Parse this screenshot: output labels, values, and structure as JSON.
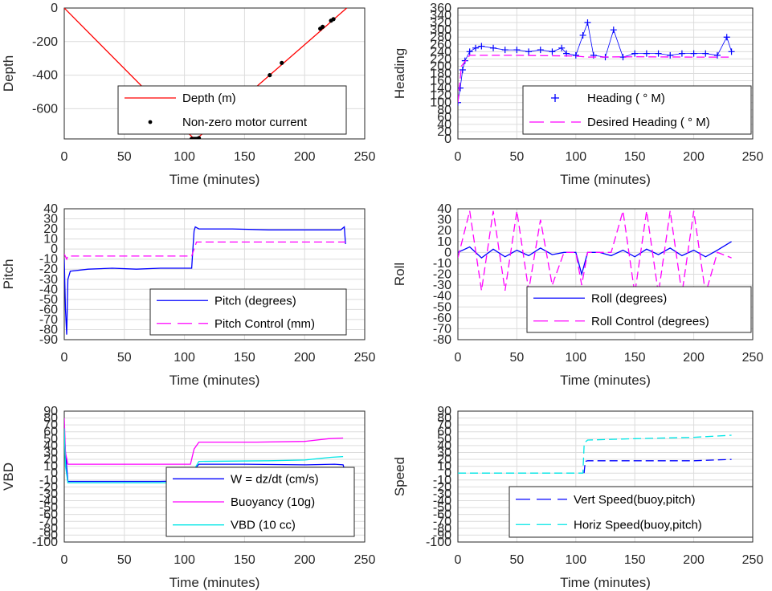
{
  "chart_data": [
    {
      "id": "depth",
      "type": "line",
      "xlabel": "Time (minutes)",
      "ylabel": "Depth",
      "xlim": [
        0,
        250
      ],
      "ylim": [
        -780,
        0
      ],
      "xticks": [
        "0",
        "50",
        "100",
        "150",
        "200",
        "250"
      ],
      "yticks": [
        "0",
        "-200",
        "-400",
        "-600"
      ],
      "legend": "bottom-right",
      "series": [
        {
          "name": "Depth (m)",
          "style": "line",
          "color": "#ff0000",
          "x": [
            0,
            108,
            110,
            235
          ],
          "y": [
            0,
            -780,
            -780,
            0
          ]
        },
        {
          "name": "Non-zero motor current",
          "style": "dots",
          "color": "#000000",
          "x": [
            106,
            107,
            108,
            109,
            110,
            111,
            112,
            171,
            181,
            213,
            215,
            222,
            224
          ],
          "y": [
            -780,
            -780,
            -780,
            -780,
            -780,
            -780,
            -775,
            -400,
            -327,
            -123,
            -112,
            -75,
            -66
          ]
        }
      ]
    },
    {
      "id": "heading",
      "type": "line",
      "xlabel": "Time (minutes)",
      "ylabel": "Heading",
      "xlim": [
        0,
        250
      ],
      "ylim": [
        0,
        360
      ],
      "xticks": [
        "0",
        "50",
        "100",
        "150",
        "200",
        "250"
      ],
      "yticks": [
        "0",
        "20",
        "40",
        "60",
        "80",
        "100",
        "120",
        "140",
        "160",
        "180",
        "200",
        "220",
        "240",
        "260",
        "280",
        "300",
        "320",
        "340",
        "360"
      ],
      "legend": "bottom-right",
      "series": [
        {
          "name": "Heading ( ° M)",
          "style": "plus",
          "color": "#0000ff",
          "x": [
            0,
            2,
            4,
            6,
            10,
            15,
            20,
            30,
            40,
            50,
            60,
            70,
            80,
            88,
            92,
            100,
            106,
            110,
            115,
            125,
            132,
            140,
            150,
            160,
            170,
            180,
            190,
            200,
            210,
            220,
            228,
            232
          ],
          "y": [
            100,
            140,
            190,
            215,
            240,
            250,
            255,
            250,
            245,
            245,
            240,
            245,
            240,
            250,
            235,
            230,
            285,
            320,
            230,
            225,
            300,
            225,
            235,
            235,
            235,
            230,
            235,
            235,
            235,
            230,
            280,
            240
          ]
        },
        {
          "name": "Desired Heading ( ° M)",
          "style": "dash",
          "color": "#ff00ff",
          "x": [
            0,
            3,
            10,
            50,
            100,
            110,
            150,
            200,
            233
          ],
          "y": [
            100,
            200,
            230,
            230,
            228,
            225,
            226,
            225,
            225
          ]
        }
      ]
    },
    {
      "id": "pitch",
      "type": "line",
      "xlabel": "Time (minutes)",
      "ylabel": "Pitch",
      "xlim": [
        0,
        250
      ],
      "ylim": [
        -90,
        40
      ],
      "xticks": [
        "0",
        "50",
        "100",
        "150",
        "200",
        "250"
      ],
      "yticks": [
        "-90",
        "-80",
        "-70",
        "-60",
        "-50",
        "-40",
        "-30",
        "-20",
        "-10",
        "0",
        "10",
        "20",
        "30",
        "40"
      ],
      "legend": "bottom-right",
      "series": [
        {
          "name": "Pitch (degrees)",
          "style": "line",
          "color": "#0000ff",
          "x": [
            0,
            1,
            2,
            3,
            5,
            20,
            40,
            60,
            80,
            100,
            106,
            107,
            108,
            109,
            112,
            140,
            170,
            200,
            230,
            233,
            234
          ],
          "y": [
            -10,
            -60,
            -85,
            -30,
            -22,
            -20,
            -19,
            -20,
            -19,
            -19,
            -19,
            0,
            18,
            22,
            20,
            20,
            19,
            19,
            19,
            22,
            5
          ]
        },
        {
          "name": "Pitch Control (mm)",
          "style": "dash",
          "color": "#ff00ff",
          "x": [
            0,
            2,
            3,
            50,
            106,
            108,
            110,
            150,
            200,
            234
          ],
          "y": [
            -5,
            -10,
            -7,
            -7,
            -7,
            0,
            7,
            7,
            7,
            7
          ]
        }
      ]
    },
    {
      "id": "roll",
      "type": "line",
      "xlabel": "Time (minutes)",
      "ylabel": "Roll",
      "xlim": [
        0,
        250
      ],
      "ylim": [
        -80,
        40
      ],
      "xticks": [
        "0",
        "50",
        "100",
        "150",
        "200",
        "250"
      ],
      "yticks": [
        "-80",
        "-70",
        "-60",
        "-50",
        "-40",
        "-30",
        "-20",
        "-10",
        "0",
        "10",
        "20",
        "30",
        "40"
      ],
      "legend": "bottom-right",
      "series": [
        {
          "name": "Roll (degrees)",
          "style": "line",
          "color": "#0000ff",
          "x": [
            0,
            10,
            20,
            30,
            40,
            50,
            60,
            70,
            80,
            90,
            100,
            105,
            110,
            120,
            130,
            140,
            150,
            160,
            170,
            180,
            190,
            200,
            210,
            220,
            232
          ],
          "y": [
            0,
            5,
            -5,
            3,
            -4,
            2,
            -3,
            4,
            -2,
            0,
            0,
            -20,
            0,
            0,
            -3,
            2,
            -4,
            3,
            -2,
            4,
            -3,
            2,
            -4,
            2,
            10
          ]
        },
        {
          "name": "Roll Control (degrees)",
          "style": "dash",
          "color": "#ff00ff",
          "x": [
            0,
            10,
            20,
            30,
            40,
            50,
            60,
            70,
            80,
            90,
            100,
            105,
            110,
            120,
            130,
            140,
            150,
            160,
            170,
            180,
            190,
            200,
            210,
            220,
            232
          ],
          "y": [
            -5,
            38,
            -35,
            38,
            -35,
            38,
            -35,
            30,
            -30,
            0,
            0,
            -30,
            0,
            0,
            0,
            38,
            -38,
            38,
            -38,
            38,
            -38,
            38,
            -38,
            0,
            -5
          ]
        }
      ]
    },
    {
      "id": "vbd",
      "type": "line",
      "xlabel": "Time (minutes)",
      "ylabel": "VBD",
      "xlim": [
        0,
        250
      ],
      "ylim": [
        -100,
        90
      ],
      "xticks": [
        "0",
        "50",
        "100",
        "150",
        "200",
        "250"
      ],
      "yticks": [
        "-100",
        "-90",
        "-80",
        "-70",
        "-60",
        "-50",
        "-40",
        "-30",
        "-20",
        "-10",
        "0",
        "10",
        "20",
        "30",
        "40",
        "50",
        "60",
        "70",
        "80",
        "90"
      ],
      "legend": "bottom-right",
      "series": [
        {
          "name": "W = dz/dt (cm/s)",
          "style": "line",
          "color": "#0000ff",
          "x": [
            0,
            1,
            3,
            20,
            50,
            80,
            106,
            108,
            112,
            150,
            200,
            225,
            232,
            234
          ],
          "y": [
            60,
            30,
            -12,
            -12,
            -12,
            -12,
            -11,
            5,
            13,
            13,
            12,
            13,
            12,
            0
          ]
        },
        {
          "name": "Buoyancy (10g)",
          "style": "line",
          "color": "#ff00ff",
          "x": [
            0,
            1,
            3,
            50,
            105,
            108,
            112,
            160,
            200,
            220,
            232
          ],
          "y": [
            80,
            30,
            13,
            13,
            13,
            35,
            45,
            45,
            46,
            50,
            51
          ]
        },
        {
          "name": "VBD (10 cc)",
          "style": "line",
          "color": "#00e6e6",
          "x": [
            0,
            1,
            3,
            50,
            105,
            108,
            112,
            170,
            200,
            222,
            232
          ],
          "y": [
            65,
            10,
            -14,
            -14,
            -14,
            5,
            17,
            18,
            19,
            23,
            24
          ]
        }
      ]
    },
    {
      "id": "speed",
      "type": "line",
      "xlabel": "Time (minutes)",
      "ylabel": "Speed",
      "xlim": [
        0,
        250
      ],
      "ylim": [
        -100,
        90
      ],
      "xticks": [
        "0",
        "50",
        "100",
        "150",
        "200",
        "250"
      ],
      "yticks": [
        "-100",
        "-90",
        "-80",
        "-70",
        "-60",
        "-50",
        "-40",
        "-30",
        "-20",
        "-10",
        "0",
        "10",
        "20",
        "30",
        "40",
        "50",
        "60",
        "70",
        "80",
        "90"
      ],
      "legend": "bottom-right",
      "series": [
        {
          "name": "Vert Speed(buoy,pitch)",
          "style": "dash",
          "color": "#0000ff",
          "x": [
            107,
            108,
            110,
            150,
            200,
            232
          ],
          "y": [
            0,
            17,
            18,
            18,
            18,
            20
          ]
        },
        {
          "name": "Horiz Speed(buoy,pitch)",
          "style": "dash",
          "color": "#00e6e6",
          "x": [
            0,
            50,
            106,
            107,
            108,
            110,
            150,
            200,
            232
          ],
          "y": [
            0,
            0,
            0,
            40,
            45,
            48,
            50,
            52,
            55
          ]
        }
      ]
    }
  ]
}
